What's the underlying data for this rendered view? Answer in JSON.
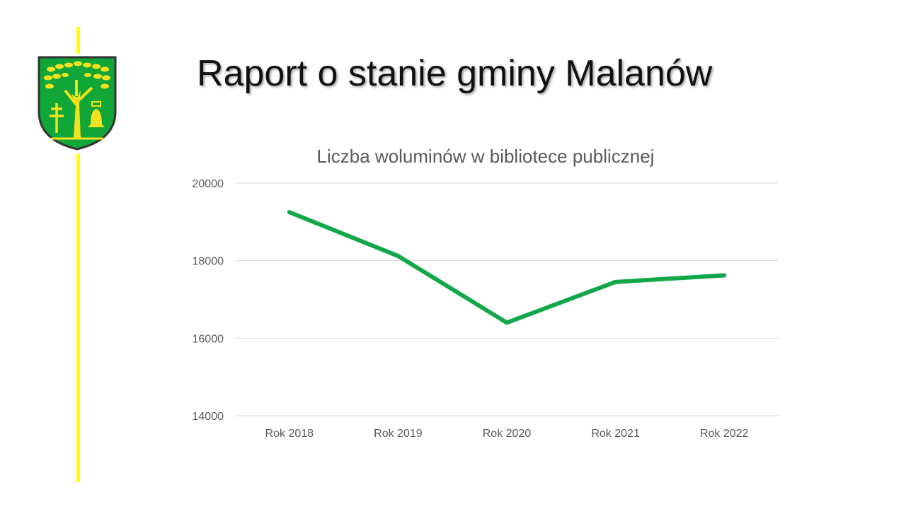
{
  "slide": {
    "title": "Raport o stanie gminy Malanów"
  },
  "colors": {
    "accent_line": "#ffff00",
    "series_line": "#12a84a",
    "crest_green": "#10a638",
    "crest_gold": "#f2e21e"
  },
  "icons": {
    "crest": "malanow-coat-of-arms-icon"
  },
  "chart_data": {
    "type": "line",
    "title": "Liczba woluminów w bibliotece publicznej",
    "xlabel": "",
    "ylabel": "",
    "categories": [
      "Rok 2018",
      "Rok 2019",
      "Rok 2020",
      "Rok 2021",
      "Rok 2022"
    ],
    "series": [
      {
        "values": [
          19250,
          18120,
          16400,
          17450,
          17620
        ]
      }
    ],
    "ylim": [
      14000,
      20000
    ],
    "yticks": [
      "20000",
      "18000",
      "16000",
      "14000"
    ],
    "ytick_values": [
      20000,
      18000,
      16000,
      14000
    ],
    "grid": true,
    "legend": "none"
  }
}
